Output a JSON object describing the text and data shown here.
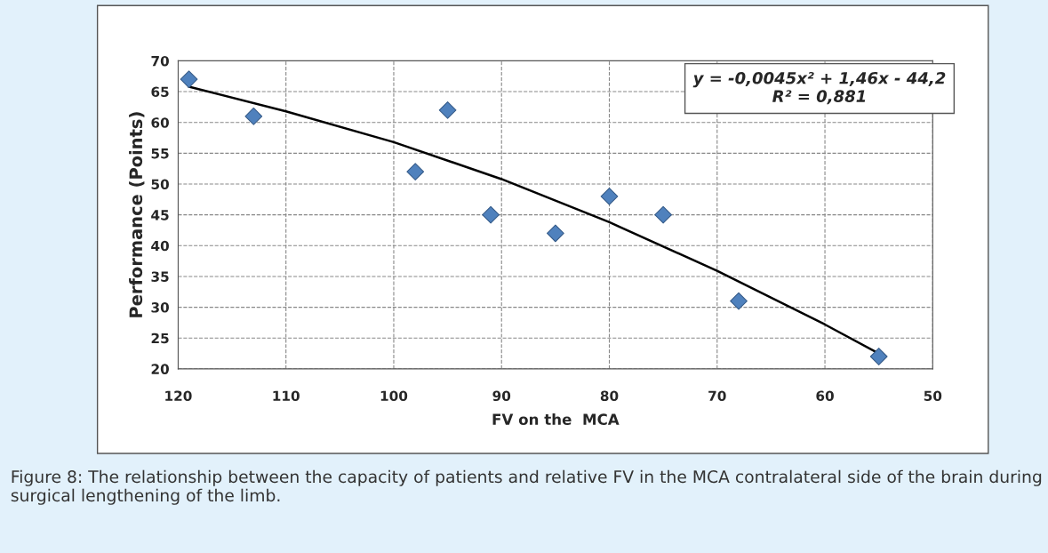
{
  "chart_data": {
    "type": "scatter",
    "xlabel": "FV on the  MCA",
    "ylabel": "Performance (Points)",
    "xlim": [
      120,
      50
    ],
    "xticks": [
      120,
      110,
      100,
      90,
      80,
      70,
      60,
      50
    ],
    "ylim": [
      20,
      70
    ],
    "yticks": [
      20,
      25,
      30,
      35,
      40,
      45,
      50,
      55,
      60,
      65,
      70
    ],
    "grid": true,
    "marker": "diamond",
    "series": [
      {
        "x": [
          119,
          113,
          98,
          95,
          91,
          85,
          80,
          75,
          68,
          55
        ],
        "values": [
          67,
          61,
          52,
          62,
          45,
          42,
          48,
          45,
          31,
          22
        ],
        "color": "#4f81bd"
      },
      {
        "type": "line",
        "marker": "none",
        "x": [
          119,
          110,
          100,
          90,
          80,
          70,
          60,
          55
        ],
        "values": [
          65.8,
          61.8,
          56.8,
          50.8,
          43.8,
          35.9,
          27.2,
          22.5
        ],
        "color": "#000000"
      }
    ],
    "annotations": [
      "y = -0,0045x² + 1,46x - 44,2",
      "R² = 0,881",
      "Figure 8: The relationship between the capacity of patients and relative FV in the MCA contralateral side of the brain during surgical lengthening of the limb."
    ]
  }
}
